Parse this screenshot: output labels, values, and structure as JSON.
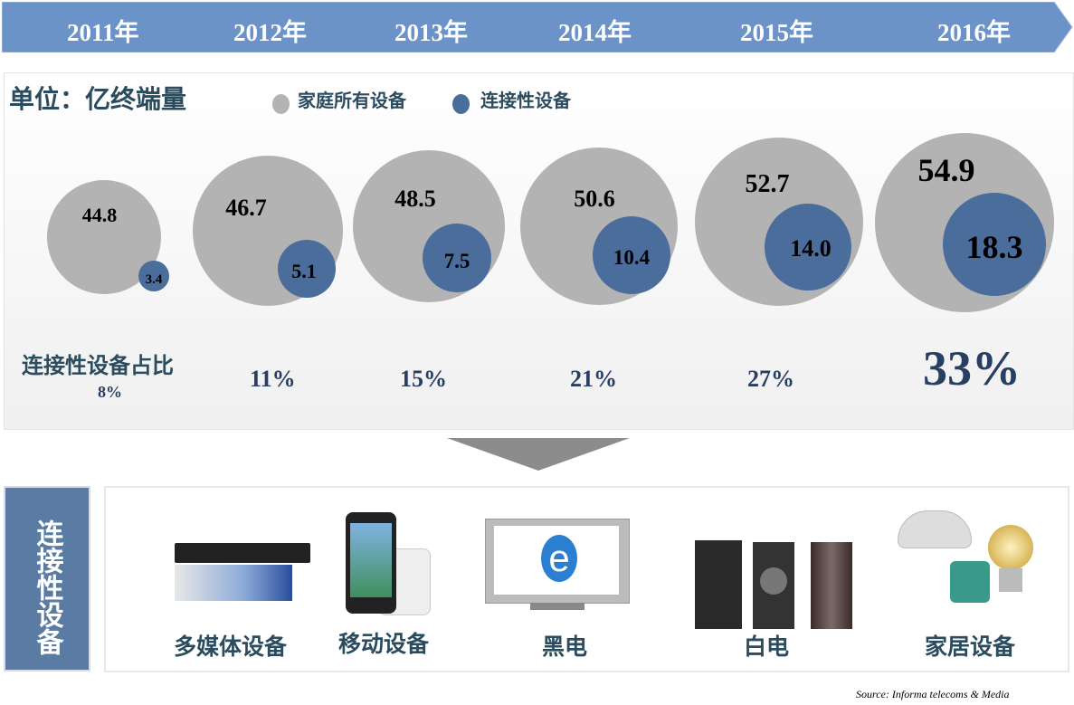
{
  "timeline": {
    "years": [
      "2011年",
      "2012年",
      "2013年",
      "2014年",
      "2015年",
      "2016年"
    ],
    "color": "#6b93c8"
  },
  "unit": "单位：亿终端量",
  "legend": [
    {
      "label": "家庭所有设备",
      "color": "#b3b3b3"
    },
    {
      "label": "连接性设备",
      "color": "#4a6d9c"
    }
  ],
  "ratio_label": "连接性设备占比",
  "chart_data": {
    "type": "bubble",
    "categories": [
      "2011年",
      "2012年",
      "2013年",
      "2014年",
      "2015年",
      "2016年"
    ],
    "series": [
      {
        "name": "家庭所有设备",
        "values": [
          44.8,
          46.7,
          48.5,
          50.6,
          52.7,
          54.9
        ],
        "labels": [
          "44.8",
          "46.7",
          "48.5",
          "50.6",
          "52.7",
          "54.9"
        ],
        "color": "#b3b3b3"
      },
      {
        "name": "连接性设备",
        "values": [
          3.4,
          5.1,
          7.5,
          10.4,
          14.0,
          18.3
        ],
        "labels": [
          "3.4",
          "5.1",
          "7.5",
          "10.4",
          "14.0",
          "18.3"
        ],
        "color": "#4a6d9c"
      }
    ],
    "share": [
      "8%",
      "11%",
      "15%",
      "21%",
      "27%",
      "33%"
    ]
  },
  "side_label": "连接性设备",
  "devices": [
    {
      "label": "多媒体设备",
      "icon": "blu-ray-player-image"
    },
    {
      "label": "移动设备",
      "icon": "smartphone-image"
    },
    {
      "label": "黑电",
      "icon": "tv-image"
    },
    {
      "label": "白电",
      "icon": "appliances-image"
    },
    {
      "label": "家居设备",
      "icon": "smart-home-image"
    }
  ],
  "source": "Source: Informa telecoms &  Media"
}
